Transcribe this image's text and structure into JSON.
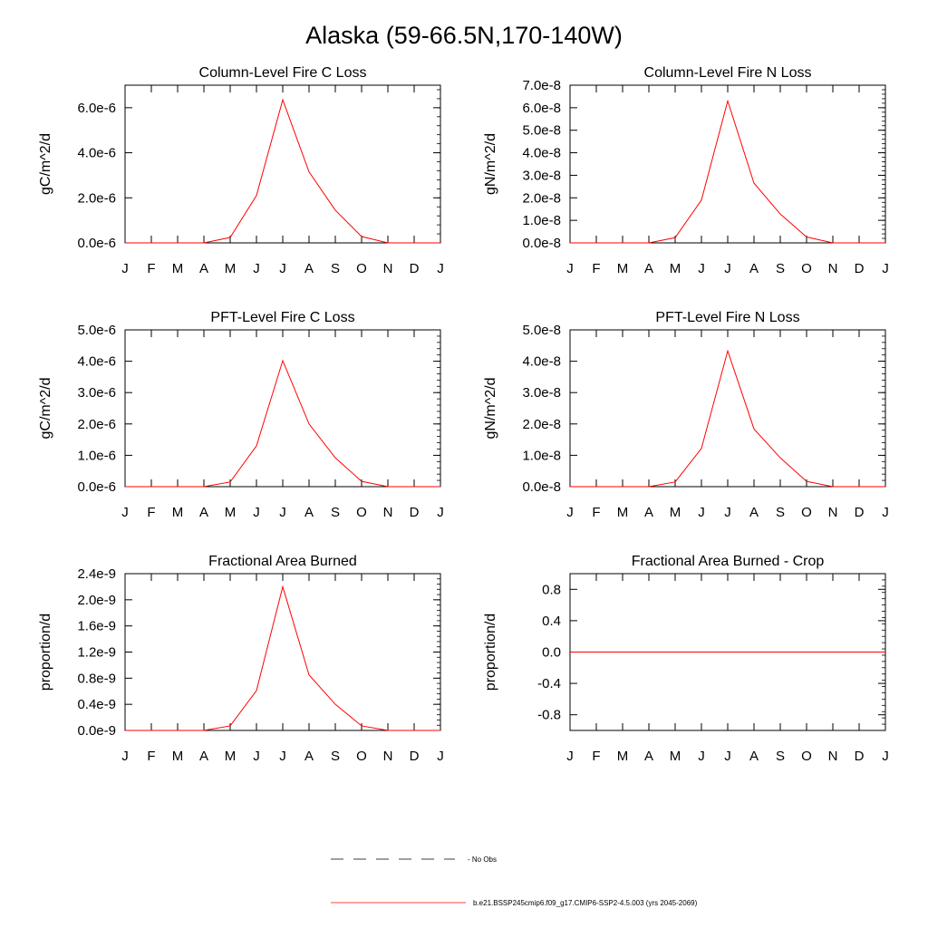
{
  "title": "Alaska (59-66.5N,170-140W)",
  "colors": {
    "model": "#ff0000",
    "obs": "#000000",
    "axis": "#000000"
  },
  "legend": {
    "obs_label": "- No Obs",
    "model_label": "b.e21.BSSP245cmip6.f09_g17.CMIP6-SSP2-4.5.003 (yrs 2045-2069)"
  },
  "chart_data": [
    {
      "type": "line",
      "title": "Column-Level Fire C Loss",
      "ylabel": "gC/m^2/d",
      "categories": [
        "J",
        "F",
        "M",
        "A",
        "M",
        "J",
        "J",
        "A",
        "S",
        "O",
        "N",
        "D",
        "J"
      ],
      "ylim": [
        0,
        7e-06
      ],
      "yticks": [
        "0.0e-6",
        "2.0e-6",
        "4.0e-6",
        "6.0e-6"
      ],
      "ytick_values": [
        0,
        2e-06,
        4e-06,
        6e-06
      ],
      "series": [
        {
          "values": [
            0,
            0,
            0,
            0,
            2.4e-07,
            2.1e-06,
            6.35e-06,
            3.15e-06,
            1.45e-06,
            2.8e-07,
            0,
            0,
            0
          ]
        }
      ]
    },
    {
      "type": "line",
      "title": "Column-Level Fire N Loss",
      "ylabel": "gN/m^2/d",
      "categories": [
        "J",
        "F",
        "M",
        "A",
        "M",
        "J",
        "J",
        "A",
        "S",
        "O",
        "N",
        "D",
        "J"
      ],
      "ylim": [
        0,
        7e-08
      ],
      "yticks": [
        "0.0e-8",
        "1.0e-8",
        "2.0e-8",
        "3.0e-8",
        "4.0e-8",
        "5.0e-8",
        "6.0e-8",
        "7.0e-8"
      ],
      "ytick_values": [
        0,
        1e-08,
        2e-08,
        3e-08,
        4e-08,
        5e-08,
        6e-08,
        7e-08
      ],
      "series": [
        {
          "values": [
            0,
            0,
            0,
            0,
            2.3e-09,
            1.9e-08,
            6.3e-08,
            2.65e-08,
            1.28e-08,
            2.6e-09,
            0,
            0,
            0
          ]
        }
      ]
    },
    {
      "type": "line",
      "title": "PFT-Level Fire C Loss",
      "ylabel": "gC/m^2/d",
      "categories": [
        "J",
        "F",
        "M",
        "A",
        "M",
        "J",
        "J",
        "A",
        "S",
        "O",
        "N",
        "D",
        "J"
      ],
      "ylim": [
        0,
        5e-06
      ],
      "yticks": [
        "0.0e-6",
        "1.0e-6",
        "2.0e-6",
        "3.0e-6",
        "4.0e-6",
        "5.0e-6"
      ],
      "ytick_values": [
        0,
        1e-06,
        2e-06,
        3e-06,
        4e-06,
        5e-06
      ],
      "series": [
        {
          "values": [
            0,
            0,
            0,
            0,
            1.5e-07,
            1.3e-06,
            4.02e-06,
            2e-06,
            9.2e-07,
            1.7e-07,
            0,
            0,
            0
          ]
        }
      ]
    },
    {
      "type": "line",
      "title": "PFT-Level Fire N Loss",
      "ylabel": "gN/m^2/d",
      "categories": [
        "J",
        "F",
        "M",
        "A",
        "M",
        "J",
        "J",
        "A",
        "S",
        "O",
        "N",
        "D",
        "J"
      ],
      "ylim": [
        0,
        5e-08
      ],
      "yticks": [
        "0.0e-8",
        "1.0e-8",
        "2.0e-8",
        "3.0e-8",
        "4.0e-8",
        "5.0e-8"
      ],
      "ytick_values": [
        0,
        1e-08,
        2e-08,
        3e-08,
        4e-08,
        5e-08
      ],
      "series": [
        {
          "values": [
            0,
            0,
            0,
            0,
            1.5e-09,
            1.22e-08,
            4.33e-08,
            1.84e-08,
            9.2e-09,
            1.7e-09,
            0,
            0,
            0
          ]
        }
      ]
    },
    {
      "type": "line",
      "title": "Fractional Area Burned",
      "ylabel": "proportion/d",
      "categories": [
        "J",
        "F",
        "M",
        "A",
        "M",
        "J",
        "J",
        "A",
        "S",
        "O",
        "N",
        "D",
        "J"
      ],
      "ylim": [
        0,
        2.4e-09
      ],
      "yticks": [
        "0.0e-9",
        "0.4e-9",
        "0.8e-9",
        "1.2e-9",
        "1.6e-9",
        "2.0e-9",
        "2.4e-9"
      ],
      "ytick_values": [
        0,
        4e-10,
        8e-10,
        1.2e-09,
        1.6e-09,
        2e-09,
        2.4e-09
      ],
      "series": [
        {
          "values": [
            0,
            0,
            0,
            0,
            7e-11,
            6.1e-10,
            2.2e-09,
            8.5e-10,
            4e-10,
            7e-11,
            0,
            0,
            0
          ]
        }
      ]
    },
    {
      "type": "line",
      "title": "Fractional Area Burned - Crop",
      "ylabel": "proportion/d",
      "categories": [
        "J",
        "F",
        "M",
        "A",
        "M",
        "J",
        "J",
        "A",
        "S",
        "O",
        "N",
        "D",
        "J"
      ],
      "ylim": [
        -1.0,
        1.0
      ],
      "yticks": [
        "-0.8",
        "-0.4",
        "0.0",
        "0.4",
        "0.8"
      ],
      "ytick_values": [
        -0.8,
        -0.4,
        0,
        0.4,
        0.8
      ],
      "series": [
        {
          "values": [
            0,
            0,
            0,
            0,
            0,
            0,
            0,
            0,
            0,
            0,
            0,
            0,
            0
          ]
        }
      ]
    }
  ]
}
